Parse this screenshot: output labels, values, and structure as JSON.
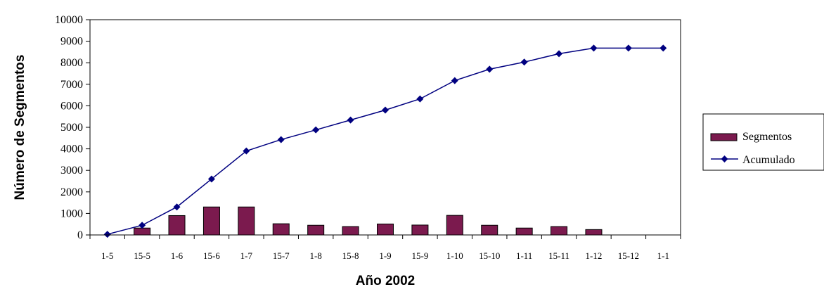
{
  "chart_data": {
    "type": "bar+line",
    "categories": [
      "1-5",
      "15-5",
      "1-6",
      "15-6",
      "1-7",
      "15-7",
      "1-8",
      "15-8",
      "1-9",
      "15-9",
      "1-10",
      "15-10",
      "1-11",
      "15-11",
      "1-12",
      "15-12",
      "1-1"
    ],
    "series": [
      {
        "name": "Segmentos",
        "type": "bar",
        "color": "#7b1a4e",
        "values": [
          0,
          320,
          900,
          1300,
          1300,
          520,
          450,
          390,
          510,
          460,
          910,
          450,
          320,
          390,
          250,
          null,
          null
        ]
      },
      {
        "name": "Acumulado",
        "type": "line",
        "color": "#000080",
        "values": [
          30,
          450,
          1300,
          2600,
          3900,
          4430,
          4880,
          5340,
          5800,
          6320,
          7170,
          7700,
          8030,
          8420,
          8680,
          8680,
          8680
        ]
      }
    ],
    "xlabel": "Año 2002",
    "ylabel": "Número de Segmentos",
    "ylim": [
      0,
      10000
    ],
    "yticks": [
      0,
      1000,
      2000,
      3000,
      4000,
      5000,
      6000,
      7000,
      8000,
      9000,
      10000
    ],
    "grid": false,
    "legend_position": "right"
  }
}
